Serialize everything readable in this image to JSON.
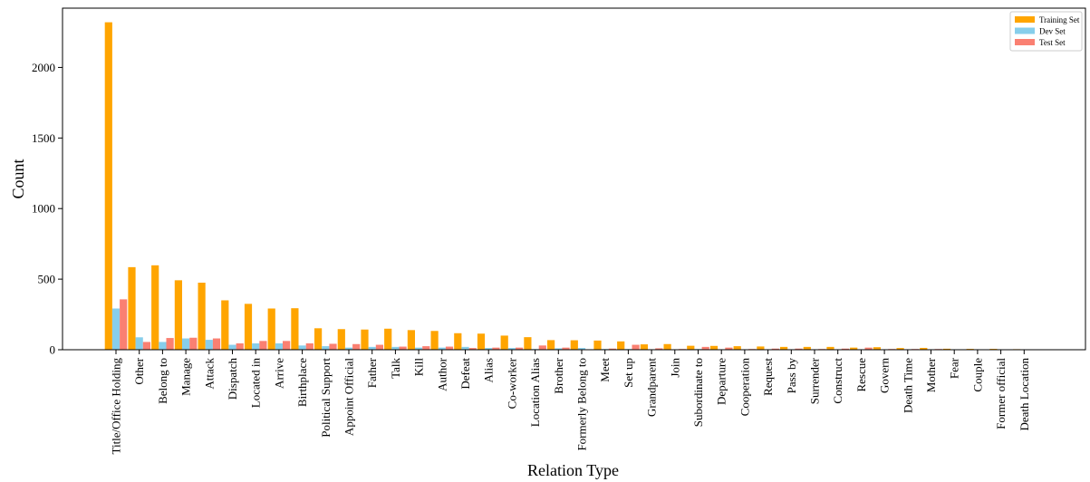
{
  "chart_data": {
    "type": "bar",
    "xlabel": "Relation Type",
    "ylabel": "Count",
    "ylim": [
      0,
      2420
    ],
    "yticks": [
      0,
      500,
      1000,
      1500,
      2000
    ],
    "legend_position": "top-right",
    "grid": false,
    "categories": [
      "Title/Office Holding",
      "Other",
      "Belong to",
      "Manage",
      "Attack",
      "Dispatch",
      "Located in",
      "Arrive",
      "Birthplace",
      "Political Support",
      "Appoint Official",
      "Father",
      "Talk",
      "Kill",
      "Author",
      "Defeat",
      "Alias",
      "Co-worker",
      "Location Alias",
      "Brother",
      "Formerly Belong to",
      "Meet",
      "Set up",
      "Grandparent",
      "Join",
      "Subordinate to",
      "Departure",
      "Cooperation",
      "Request",
      "Pass by",
      "Surrender",
      "Construct",
      "Rescue",
      "Govern",
      "Death Time",
      "Mother",
      "Fear",
      "Couple",
      "Former official",
      "Death Location"
    ],
    "series": [
      {
        "name": "Training Set",
        "color": "#FFA500",
        "values": [
          2320,
          585,
          598,
          492,
          475,
          350,
          325,
          292,
          294,
          152,
          146,
          143,
          149,
          139,
          133,
          117,
          114,
          100,
          89,
          68,
          67,
          65,
          59,
          38,
          40,
          28,
          27,
          25,
          23,
          20,
          20,
          20,
          15,
          18,
          12,
          13,
          7,
          6,
          6,
          4
        ]
      },
      {
        "name": "Dev Set",
        "color": "#87CEEB",
        "values": [
          292,
          88,
          55,
          80,
          70,
          35,
          45,
          45,
          30,
          25,
          15,
          20,
          20,
          15,
          15,
          20,
          12,
          12,
          5,
          10,
          12,
          5,
          5,
          3,
          3,
          5,
          3,
          3,
          3,
          3,
          1,
          1,
          3,
          1,
          1,
          1,
          1,
          1,
          1,
          0
        ]
      },
      {
        "name": "Test Set",
        "color": "#FA8072",
        "values": [
          357,
          55,
          83,
          85,
          80,
          45,
          62,
          62,
          45,
          42,
          40,
          35,
          22,
          25,
          22,
          12,
          15,
          15,
          30,
          15,
          3,
          8,
          35,
          10,
          5,
          20,
          15,
          5,
          8,
          8,
          5,
          8,
          15,
          5,
          5,
          5,
          3,
          3,
          3,
          1
        ]
      }
    ]
  }
}
